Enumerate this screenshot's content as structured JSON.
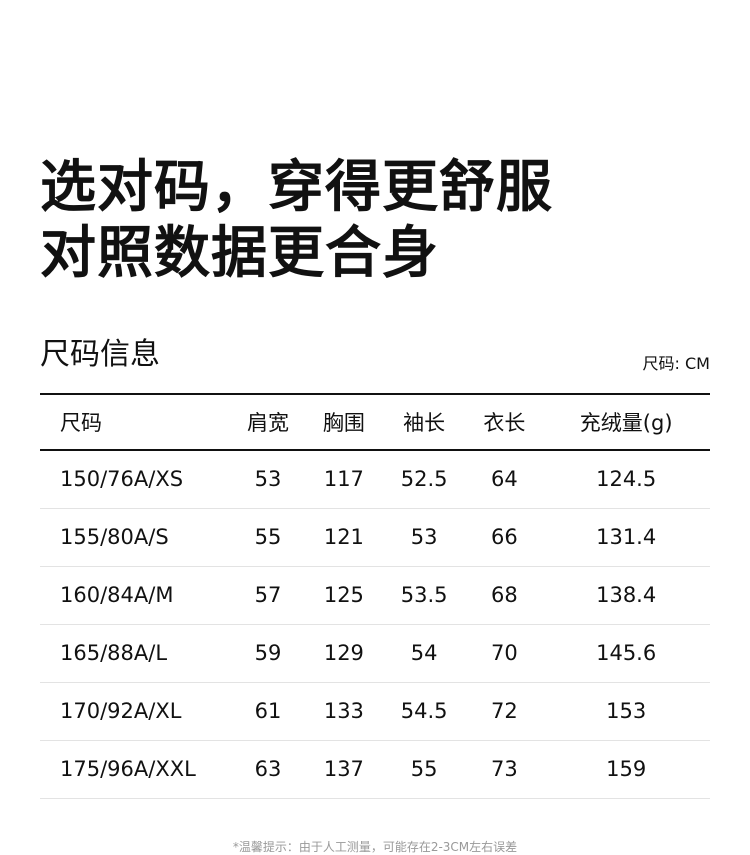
{
  "title_lines": [
    "选对码，穿得更舒服",
    "对照数据更合身"
  ],
  "section_title": "尺码信息",
  "unit_label": "尺码: CM",
  "table": {
    "headers": [
      "尺码",
      "肩宽",
      "胸围",
      "袖长",
      "衣长",
      "充绒量(g)"
    ],
    "rows": [
      [
        "150/76A/XS",
        "53",
        "117",
        "52.5",
        "64",
        "124.5"
      ],
      [
        "155/80A/S",
        "55",
        "121",
        "53",
        "66",
        "131.4"
      ],
      [
        "160/84A/M",
        "57",
        "125",
        "53.5",
        "68",
        "138.4"
      ],
      [
        "165/88A/L",
        "59",
        "129",
        "54",
        "70",
        "145.6"
      ],
      [
        "170/92A/XL",
        "61",
        "133",
        "54.5",
        "72",
        "153"
      ],
      [
        "175/96A/XXL",
        "63",
        "137",
        "55",
        "73",
        "159"
      ]
    ]
  },
  "footnote": "*温馨提示：由于人工测量，可能存在2-3CM左右误差"
}
